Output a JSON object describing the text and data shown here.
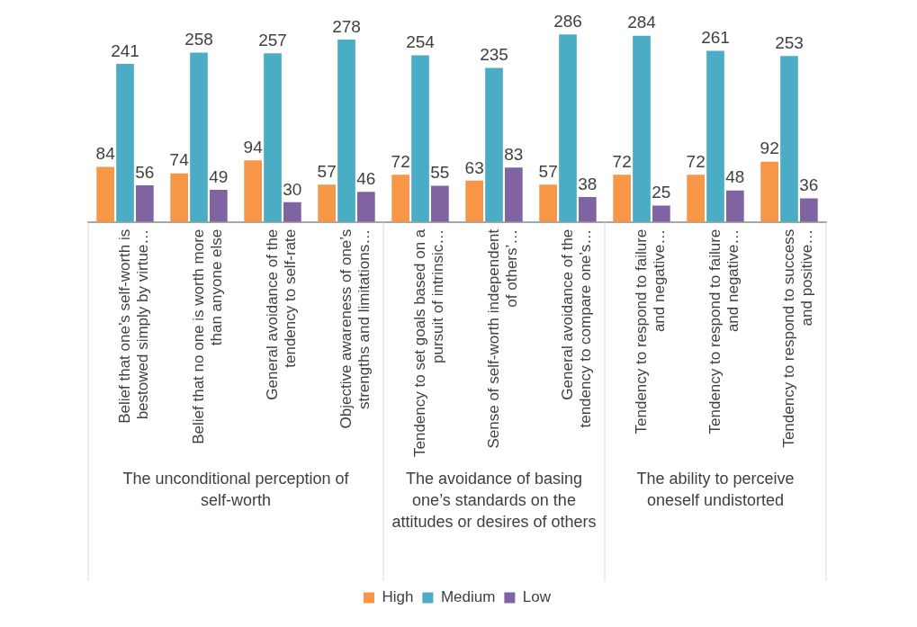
{
  "chart_data": {
    "type": "bar",
    "categories": [
      "Belief that one’s self-worth is bestowed simply by virtue…",
      "Belief that no one is worth more than anyone else",
      "General avoidance of the tendency to self-rate",
      "Objective awareness of one’s strengths and limitations…",
      "Tendency to set goals based on a pursuit of intrinsic…",
      "Sense of self-worth independent of others’…",
      "General avoidance of the tendency to compare one’s…",
      "Tendency to respond to failure and negative…",
      "Tendency to respond to failure and negative…",
      "Tendency to respond to success and positive…"
    ],
    "series": [
      {
        "name": "High",
        "color": "#f79646",
        "values": [
          84,
          74,
          94,
          57,
          72,
          63,
          57,
          72,
          72,
          92
        ]
      },
      {
        "name": "Medium",
        "color": "#4bacc6",
        "values": [
          241,
          258,
          257,
          278,
          254,
          235,
          286,
          284,
          261,
          253
        ]
      },
      {
        "name": "Low",
        "color": "#8064a2",
        "values": [
          56,
          49,
          30,
          46,
          55,
          83,
          38,
          25,
          48,
          36
        ]
      }
    ],
    "annotations": [
      "The unconditional perception of self-worth",
      "The avoidance of basing one’s standards on the attitudes or desires of others",
      "The ability to perceive oneself undistorted"
    ],
    "data_labels": true,
    "grid": false,
    "legend": "bottom"
  }
}
